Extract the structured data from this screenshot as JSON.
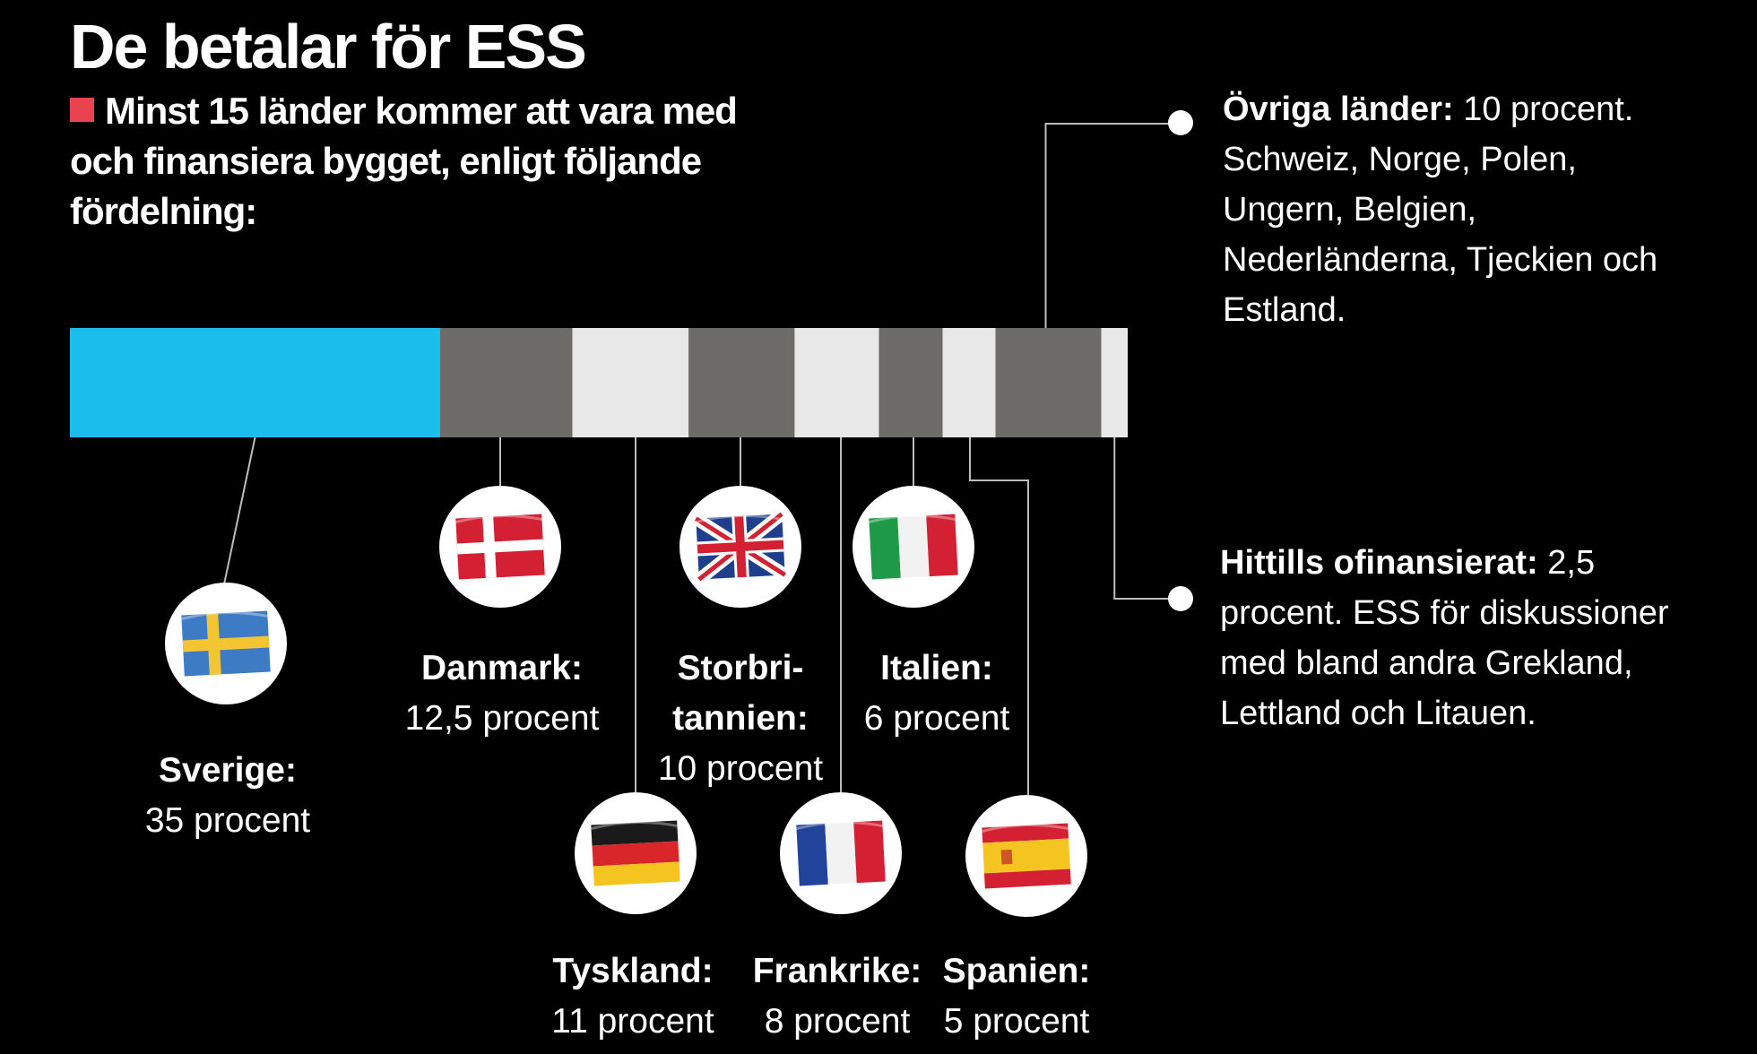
{
  "title": "De betalar för ESS",
  "subtitle": "Minst 15 länder kommer att vara med och finansiera bygget, enligt följande fördelning:",
  "chart_data": {
    "type": "bar",
    "orientation": "stacked-horizontal",
    "unit": "procent",
    "segments": [
      {
        "name": "Sverige",
        "value": 35,
        "label_value": "35 procent",
        "color": "#1bbdec",
        "flag": "sweden-flag-icon"
      },
      {
        "name": "Danmark",
        "value": 12.5,
        "label_value": "12,5 procent",
        "color": "#6d6c68",
        "flag": "denmark-flag-icon"
      },
      {
        "name": "Tyskland",
        "value": 11,
        "label_value": "11 procent",
        "color": "#e8e8e8",
        "flag": "germany-flag-icon"
      },
      {
        "name": "Storbritannien",
        "name_lines": [
          "Storbri-",
          "tannien:"
        ],
        "value": 10,
        "label_value": "10 procent",
        "color": "#6d6c68",
        "flag": "uk-flag-icon"
      },
      {
        "name": "Frankrike",
        "value": 8,
        "label_value": "8 procent",
        "color": "#e8e8e8",
        "flag": "france-flag-icon"
      },
      {
        "name": "Italien",
        "value": 6,
        "label_value": "6 procent",
        "color": "#6d6c68",
        "flag": "italy-flag-icon"
      },
      {
        "name": "Spanien",
        "value": 5,
        "label_value": "5 procent",
        "color": "#e8e8e8",
        "flag": "spain-flag-icon"
      },
      {
        "name": "Övriga länder",
        "value": 10,
        "color": "#6d6c68"
      },
      {
        "name": "Hittills ofinansierat",
        "value": 2.5,
        "color": "#e8e8e8"
      }
    ]
  },
  "notes": {
    "ovriga_bold": "Övriga länder:",
    "ovriga_text": " 10 procent. Schweiz, Norge, Polen, Ungern, Belgien, Nederländerna, Tjeckien och Estland.",
    "ofinansierat_bold": "Hittills ofinansierat:",
    "ofinansierat_text": " 2,5 procent. ESS för diskussioner med bland andra Grekland, Lettland och Litauen."
  },
  "colors": {
    "accent_square": "#e8434f",
    "leader_line": "#bdbdbd"
  }
}
